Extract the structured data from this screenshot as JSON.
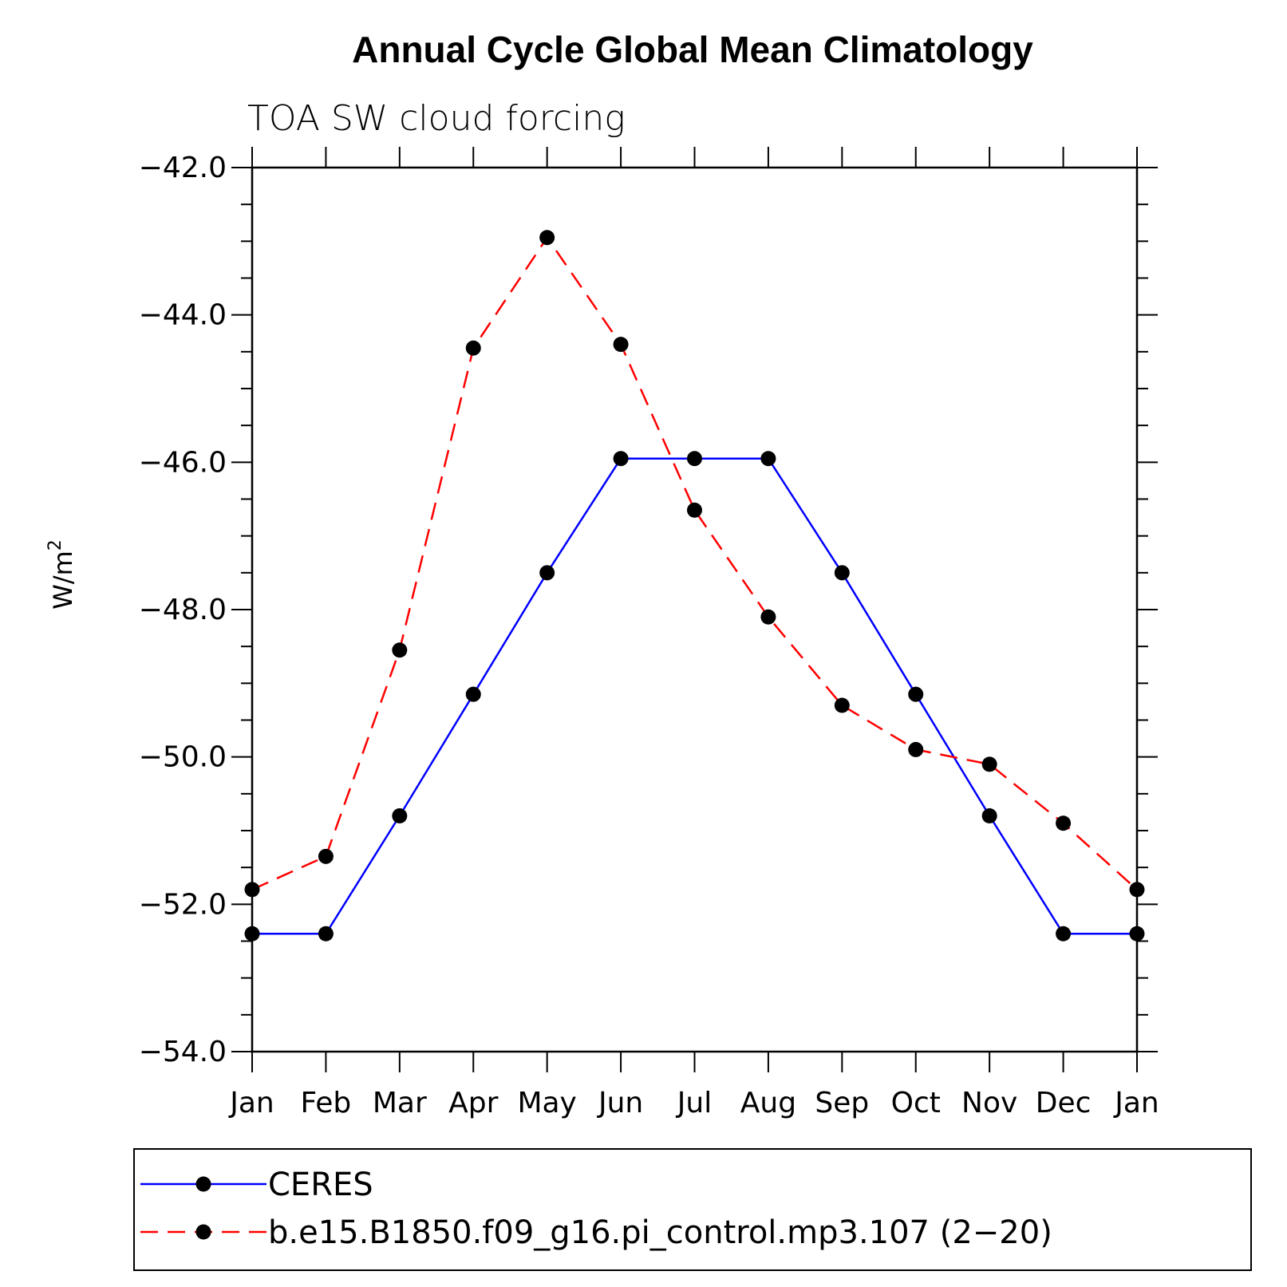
{
  "chart_data": {
    "type": "line",
    "title": "Annual Cycle Global Mean Climatology",
    "subtitle": "TOA SW cloud forcing",
    "xlabel": "",
    "ylabel": "W/m",
    "ylabel_superscript": "2",
    "categories": [
      "Jan",
      "Feb",
      "Mar",
      "Apr",
      "May",
      "Jun",
      "Jul",
      "Aug",
      "Sep",
      "Oct",
      "Nov",
      "Dec",
      "Jan"
    ],
    "ylim": [
      -54.0,
      -42.0
    ],
    "yticks": [
      -42.0,
      -44.0,
      -46.0,
      -48.0,
      -50.0,
      -52.0,
      -54.0
    ],
    "ytick_labels": [
      "−42.0",
      "−44.0",
      "−46.0",
      "−48.0",
      "−50.0",
      "−52.0",
      "−54.0"
    ],
    "grid": false,
    "legend_position": "bottom",
    "series": [
      {
        "name": "CERES",
        "color": "#0000ff",
        "dash": "solid",
        "marker": "filled-circle",
        "values": [
          -52.4,
          -52.4,
          -50.8,
          -49.15,
          -47.5,
          -45.95,
          -45.95,
          -45.95,
          -47.5,
          -49.15,
          -50.8,
          -52.4,
          -52.4
        ]
      },
      {
        "name": "b.e15.B1850.f09_g16.pi_control.mp3.107 (2−20)",
        "color": "#ff0000",
        "dash": "dashed",
        "marker": "filled-circle",
        "values": [
          -51.8,
          -51.35,
          -48.55,
          -44.45,
          -42.95,
          -44.4,
          -46.65,
          -48.1,
          -49.3,
          -49.9,
          -50.1,
          -50.9,
          -51.8
        ]
      }
    ]
  }
}
